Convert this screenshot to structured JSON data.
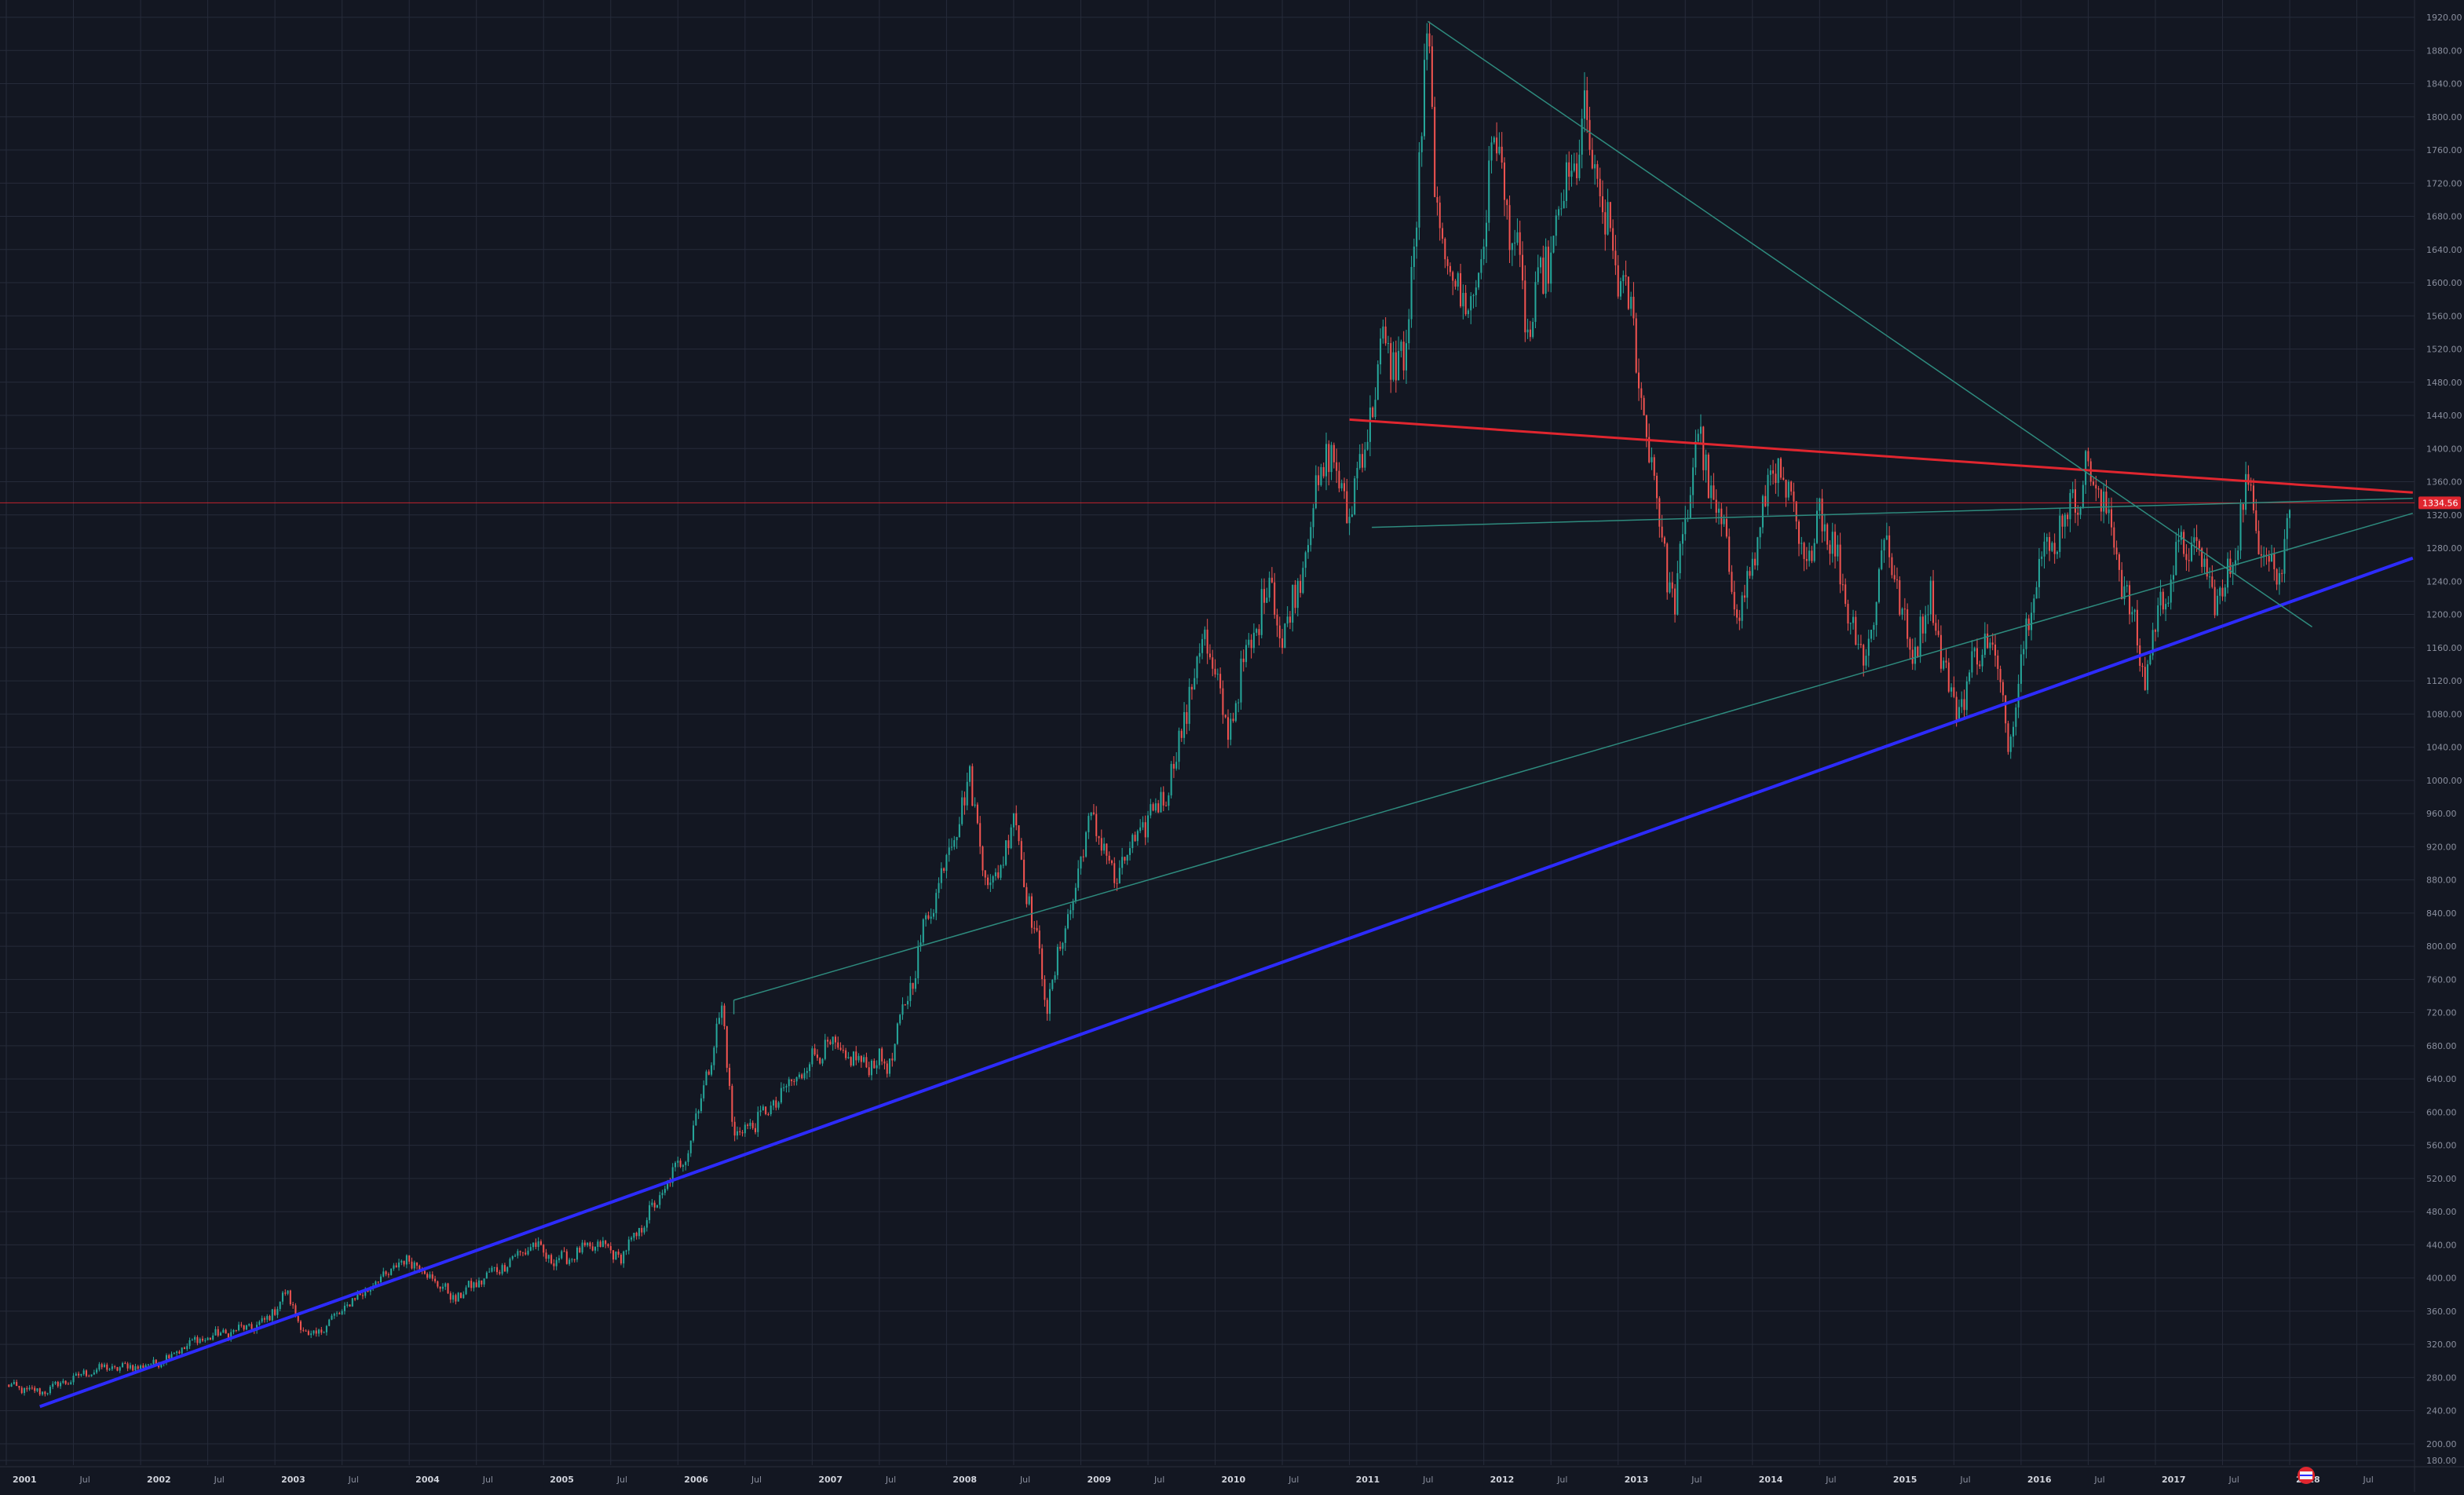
{
  "chart_data": {
    "type": "candlestick",
    "y_axis": {
      "position": "right",
      "ylim": [
        180,
        1920
      ],
      "tick_labels": [
        "1920.00",
        "1880.00",
        "1840.00",
        "1800.00",
        "1760.00",
        "1720.00",
        "1680.00",
        "1640.00",
        "1600.00",
        "1560.00",
        "1520.00",
        "1480.00",
        "1440.00",
        "1400.00",
        "1360.00",
        "1320.00",
        "1280.00",
        "1240.00",
        "1200.00",
        "1160.00",
        "1120.00",
        "1080.00",
        "1040.00",
        "1000.00",
        "960.00",
        "920.00",
        "880.00",
        "840.00",
        "800.00",
        "760.00",
        "720.00",
        "680.00",
        "640.00",
        "600.00",
        "560.00",
        "520.00",
        "480.00",
        "440.00",
        "400.00",
        "360.00",
        "320.00",
        "280.00",
        "240.00",
        "200.00",
        "180.00"
      ]
    },
    "x_axis": {
      "range": [
        "2001-01",
        "2018-12"
      ],
      "tick_labels": [
        {
          "label": "2001",
          "date": "2001-01",
          "bold": true
        },
        {
          "label": "Jul",
          "date": "2001-07",
          "bold": false
        },
        {
          "label": "2002",
          "date": "2002-01",
          "bold": true
        },
        {
          "label": "Jul",
          "date": "2002-07",
          "bold": false
        },
        {
          "label": "2003",
          "date": "2003-01",
          "bold": true
        },
        {
          "label": "Jul",
          "date": "2003-07",
          "bold": false
        },
        {
          "label": "2004",
          "date": "2004-01",
          "bold": true
        },
        {
          "label": "Jul",
          "date": "2004-07",
          "bold": false
        },
        {
          "label": "2005",
          "date": "2005-01",
          "bold": true
        },
        {
          "label": "Jul",
          "date": "2005-07",
          "bold": false
        },
        {
          "label": "2006",
          "date": "2006-01",
          "bold": true
        },
        {
          "label": "Jul",
          "date": "2006-07",
          "bold": false
        },
        {
          "label": "2007",
          "date": "2007-01",
          "bold": true
        },
        {
          "label": "Jul",
          "date": "2007-07",
          "bold": false
        },
        {
          "label": "2008",
          "date": "2008-01",
          "bold": true
        },
        {
          "label": "Jul",
          "date": "2008-07",
          "bold": false
        },
        {
          "label": "2009",
          "date": "2009-01",
          "bold": true
        },
        {
          "label": "Jul",
          "date": "2009-07",
          "bold": false
        },
        {
          "label": "2010",
          "date": "2010-01",
          "bold": true
        },
        {
          "label": "Jul",
          "date": "2010-07",
          "bold": false
        },
        {
          "label": "2011",
          "date": "2011-01",
          "bold": true
        },
        {
          "label": "Jul",
          "date": "2011-07",
          "bold": false
        },
        {
          "label": "2012",
          "date": "2012-01",
          "bold": true
        },
        {
          "label": "Jul",
          "date": "2012-07",
          "bold": false
        },
        {
          "label": "2013",
          "date": "2013-01",
          "bold": true
        },
        {
          "label": "Jul",
          "date": "2013-07",
          "bold": false
        },
        {
          "label": "2014",
          "date": "2014-01",
          "bold": true
        },
        {
          "label": "Jul",
          "date": "2014-07",
          "bold": false
        },
        {
          "label": "2015",
          "date": "2015-01",
          "bold": true
        },
        {
          "label": "Jul",
          "date": "2015-07",
          "bold": false
        },
        {
          "label": "2016",
          "date": "2016-01",
          "bold": true
        },
        {
          "label": "Jul",
          "date": "2016-07",
          "bold": false
        },
        {
          "label": "2017",
          "date": "2017-01",
          "bold": true
        },
        {
          "label": "Jul",
          "date": "2017-07",
          "bold": false
        },
        {
          "label": "2018",
          "date": "2018-01",
          "bold": true
        },
        {
          "label": "Jul",
          "date": "2018-07",
          "bold": false
        }
      ]
    },
    "last_price": {
      "value": 1334.56,
      "label": "1334.56"
    },
    "grid": true,
    "legend": "none",
    "colors": {
      "background": "#131722",
      "grid": "#262b3a",
      "up": "#26a69a",
      "down": "#ef5350",
      "axis_text": "#8a8f9e",
      "support_line": "#2d2bff",
      "resistance_line": "#e0262f",
      "thin_trendline": "#2e8b7e",
      "price_line": "#e0262f"
    },
    "key_points": [
      {
        "date": "2001-01",
        "value": 270
      },
      {
        "date": "2001-04",
        "value": 262
      },
      {
        "date": "2001-09",
        "value": 290
      },
      {
        "date": "2002-02",
        "value": 295
      },
      {
        "date": "2002-06",
        "value": 325
      },
      {
        "date": "2002-12",
        "value": 345
      },
      {
        "date": "2003-02",
        "value": 382
      },
      {
        "date": "2003-04",
        "value": 325
      },
      {
        "date": "2003-09",
        "value": 385
      },
      {
        "date": "2003-12",
        "value": 415
      },
      {
        "date": "2004-01",
        "value": 425
      },
      {
        "date": "2004-05",
        "value": 375
      },
      {
        "date": "2004-12",
        "value": 440
      },
      {
        "date": "2005-02",
        "value": 420
      },
      {
        "date": "2005-06",
        "value": 440
      },
      {
        "date": "2005-08",
        "value": 425
      },
      {
        "date": "2005-12",
        "value": 510
      },
      {
        "date": "2006-02",
        "value": 560
      },
      {
        "date": "2006-05",
        "value": 725
      },
      {
        "date": "2006-06",
        "value": 570
      },
      {
        "date": "2006-09",
        "value": 600
      },
      {
        "date": "2007-02",
        "value": 680
      },
      {
        "date": "2007-05",
        "value": 660
      },
      {
        "date": "2007-08",
        "value": 660
      },
      {
        "date": "2007-11",
        "value": 820
      },
      {
        "date": "2008-03",
        "value": 1000
      },
      {
        "date": "2008-05",
        "value": 860
      },
      {
        "date": "2008-07",
        "value": 960
      },
      {
        "date": "2008-10",
        "value": 730
      },
      {
        "date": "2009-02",
        "value": 960
      },
      {
        "date": "2009-04",
        "value": 880
      },
      {
        "date": "2009-09",
        "value": 1000
      },
      {
        "date": "2009-12",
        "value": 1180
      },
      {
        "date": "2010-02",
        "value": 1060
      },
      {
        "date": "2010-06",
        "value": 1250
      },
      {
        "date": "2010-07",
        "value": 1160
      },
      {
        "date": "2010-11",
        "value": 1400
      },
      {
        "date": "2011-01",
        "value": 1320
      },
      {
        "date": "2011-04",
        "value": 1520
      },
      {
        "date": "2011-06",
        "value": 1500
      },
      {
        "date": "2011-08",
        "value": 1890
      },
      {
        "date": "2011-09",
        "value": 1650
      },
      {
        "date": "2011-12",
        "value": 1560
      },
      {
        "date": "2012-02",
        "value": 1780
      },
      {
        "date": "2012-05",
        "value": 1540
      },
      {
        "date": "2012-10",
        "value": 1790
      },
      {
        "date": "2012-12",
        "value": 1660
      },
      {
        "date": "2013-02",
        "value": 1570
      },
      {
        "date": "2013-04",
        "value": 1380
      },
      {
        "date": "2013-06",
        "value": 1200
      },
      {
        "date": "2013-08",
        "value": 1420
      },
      {
        "date": "2013-12",
        "value": 1200
      },
      {
        "date": "2014-03",
        "value": 1390
      },
      {
        "date": "2014-06",
        "value": 1250
      },
      {
        "date": "2014-07",
        "value": 1340
      },
      {
        "date": "2014-11",
        "value": 1140
      },
      {
        "date": "2015-01",
        "value": 1300
      },
      {
        "date": "2015-03",
        "value": 1150
      },
      {
        "date": "2015-05",
        "value": 1220
      },
      {
        "date": "2015-07",
        "value": 1080
      },
      {
        "date": "2015-10",
        "value": 1180
      },
      {
        "date": "2015-12",
        "value": 1050
      },
      {
        "date": "2016-02",
        "value": 1240
      },
      {
        "date": "2016-07",
        "value": 1375
      },
      {
        "date": "2016-09",
        "value": 1310
      },
      {
        "date": "2016-12",
        "value": 1125
      },
      {
        "date": "2017-02",
        "value": 1240
      },
      {
        "date": "2017-04",
        "value": 1290
      },
      {
        "date": "2017-07",
        "value": 1210
      },
      {
        "date": "2017-09",
        "value": 1350
      },
      {
        "date": "2017-12",
        "value": 1240
      },
      {
        "date": "2018-01",
        "value": 1334
      }
    ]
  }
}
